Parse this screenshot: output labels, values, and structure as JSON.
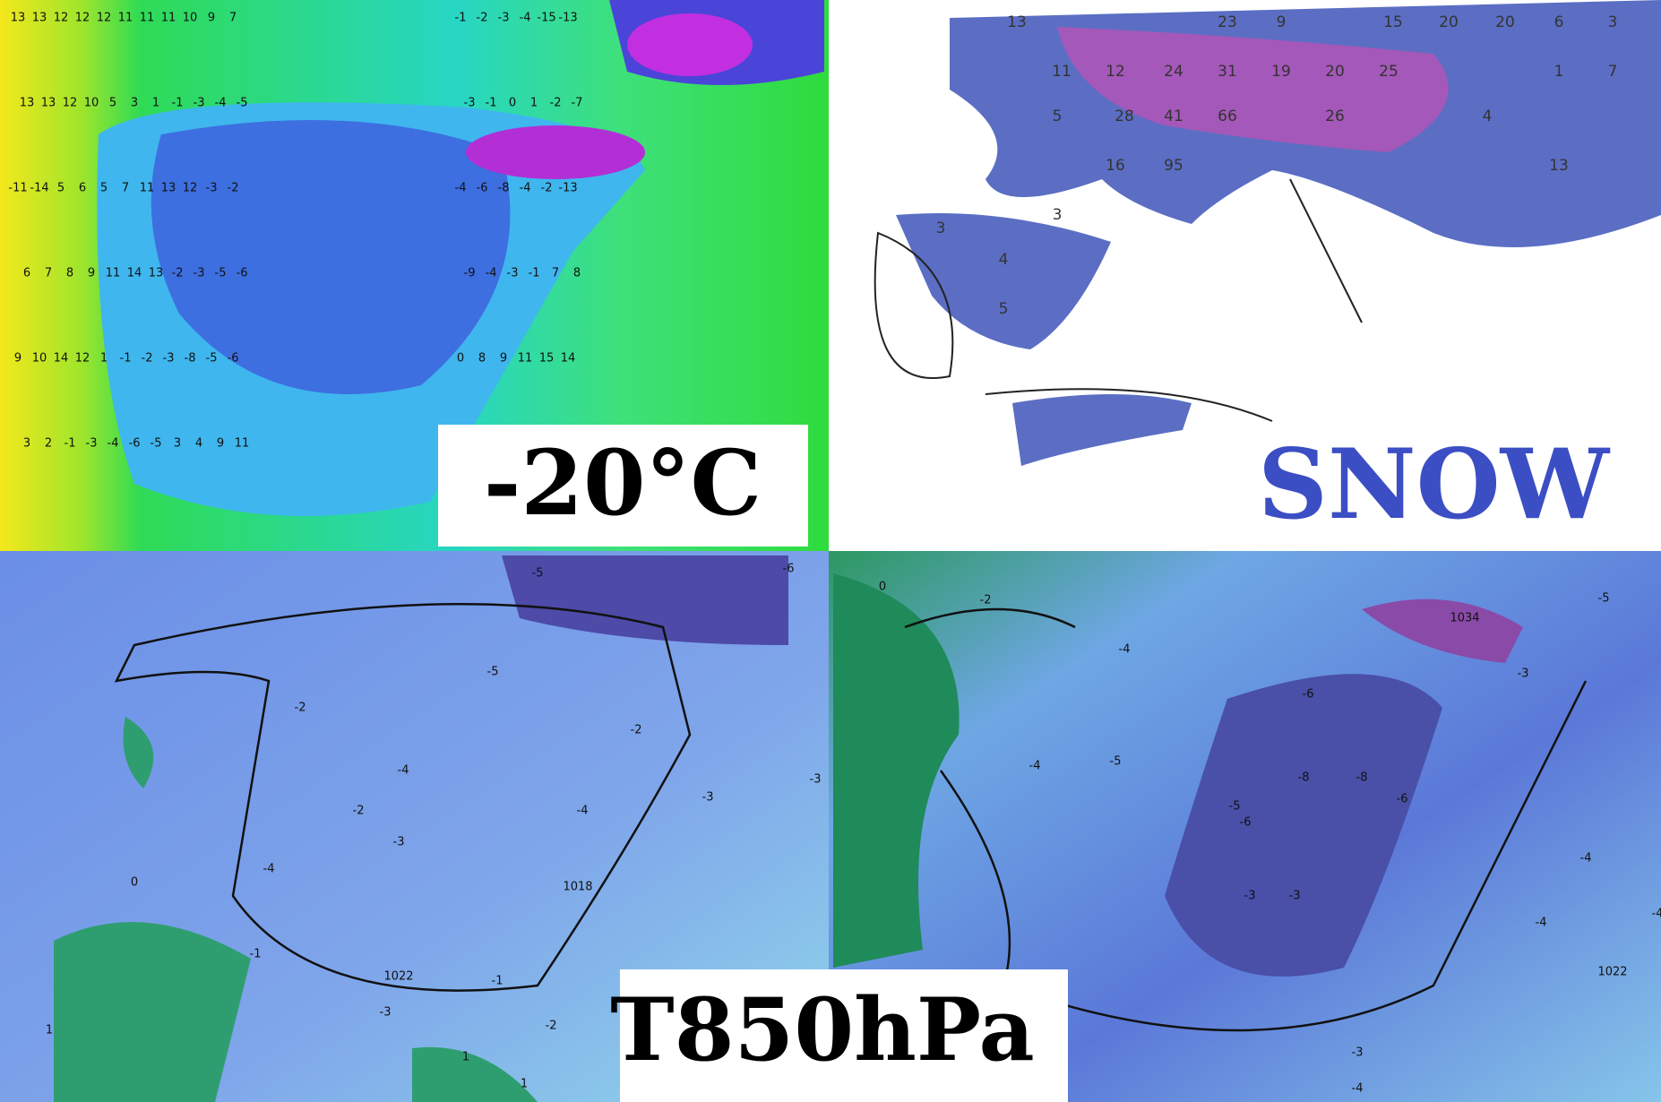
{
  "panels": {
    "temperature": {
      "label": "-20°C",
      "numbers": [
        "13",
        "13",
        "12",
        "12",
        "12",
        "11",
        "11",
        "11",
        "10",
        "9",
        "7",
        "-1",
        "-2",
        "-3",
        "-4",
        "-15",
        "-13",
        "13",
        "13",
        "12",
        "10",
        "5",
        "3",
        "1",
        "-1",
        "-3",
        "-4",
        "-5",
        "-3",
        "-1",
        "0",
        "1",
        "-2",
        "-7",
        "-11",
        "-14",
        "5",
        "6",
        "5",
        "7",
        "11",
        "13",
        "12",
        "-3",
        "-2",
        "-4",
        "-6",
        "-8",
        "-4",
        "-2",
        "-13",
        "6",
        "7",
        "8",
        "9",
        "11",
        "14",
        "13",
        "-2",
        "-3",
        "-5",
        "-6",
        "-9",
        "-4",
        "-3",
        "-1",
        "7",
        "8",
        "9",
        "10",
        "14",
        "12",
        "1",
        "-1",
        "-2",
        "-3",
        "-8",
        "-5",
        "-6",
        "0",
        "8",
        "9",
        "11",
        "15",
        "14",
        "3",
        "2",
        "-1",
        "-3",
        "-4",
        "-6",
        "-5",
        "3",
        "4",
        "9",
        "11"
      ]
    },
    "snow": {
      "label": "SNOW",
      "totals": [
        "13",
        "23",
        "9",
        "15",
        "20",
        "20",
        "6",
        "3",
        "11",
        "12",
        "24",
        "31",
        "19",
        "20",
        "25",
        "1",
        "7",
        "5",
        "28",
        "41",
        "66",
        "26",
        "4",
        "16",
        "95",
        "13",
        "3",
        "4",
        "5",
        "3"
      ]
    },
    "t850_left": {
      "contours": [
        "-5",
        "-6",
        "-5",
        "-2",
        "-2",
        "-4",
        "-4",
        "-2",
        "-3",
        "-4",
        "-3",
        "-3",
        "-1",
        "-1",
        "-2",
        "-3",
        "0",
        "1",
        "1",
        "1",
        "1022",
        "1018"
      ]
    },
    "t850_right": {
      "contours": [
        "0",
        "-2",
        "-4",
        "-4",
        "-5",
        "-6",
        "-8",
        "-8",
        "-5",
        "-6",
        "-6",
        "-3",
        "-3",
        "-4",
        "-4",
        "-3",
        "-4",
        "-3",
        "1034",
        "1022",
        "-5",
        "-4"
      ]
    }
  },
  "caption": "T850hPa"
}
